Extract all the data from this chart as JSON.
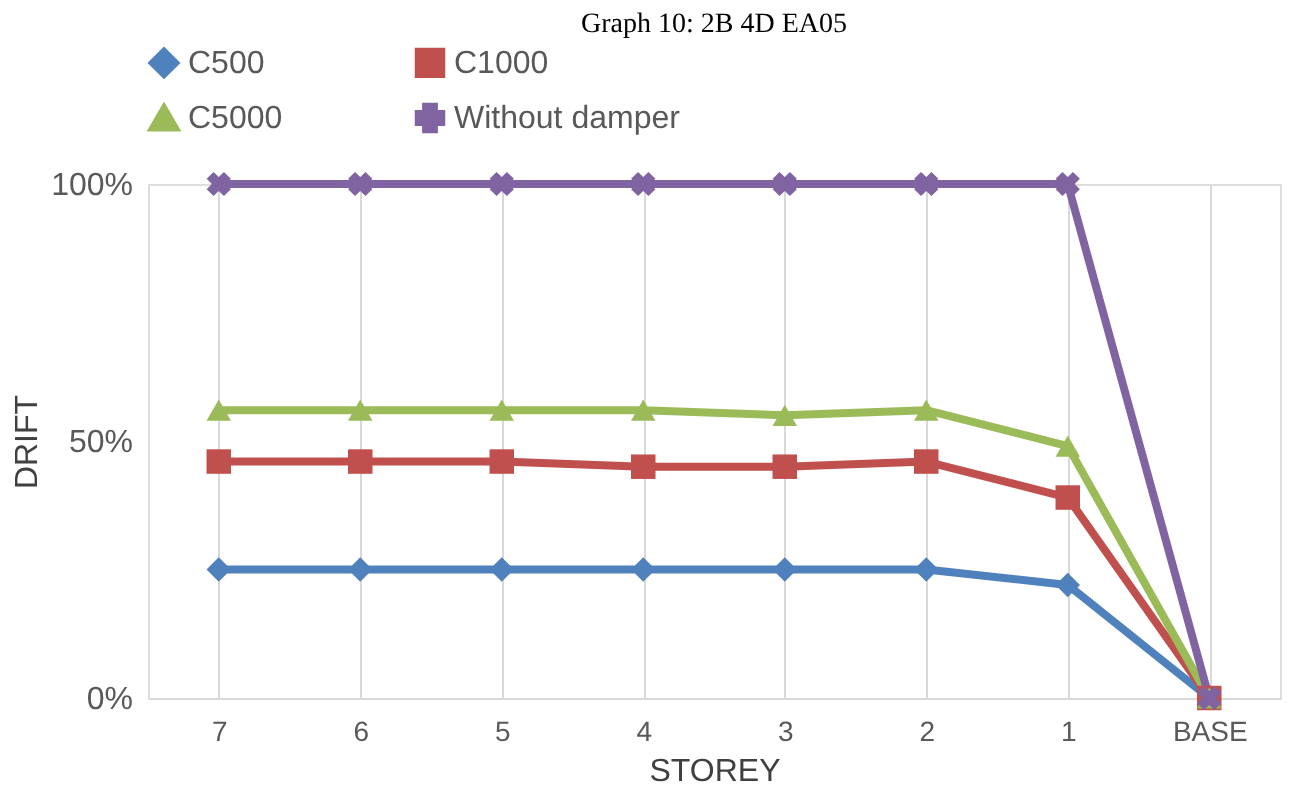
{
  "chart_data": {
    "type": "line",
    "title": "Graph 10: 2B 4D EA05",
    "xlabel": "STOREY",
    "ylabel": "DRIFT",
    "categories": [
      "7",
      "6",
      "5",
      "4",
      "3",
      "2",
      "1",
      "BASE"
    ],
    "series": [
      {
        "name": "C500",
        "color": "#4f81bd",
        "marker": "diamond",
        "values": [
          25,
          25,
          25,
          25,
          25,
          25,
          22,
          0
        ]
      },
      {
        "name": "C1000",
        "color": "#c0504d",
        "marker": "square",
        "values": [
          46,
          46,
          46,
          45,
          45,
          46,
          39,
          0
        ]
      },
      {
        "name": "C5000",
        "color": "#9bbb59",
        "marker": "triangle",
        "values": [
          56,
          56,
          56,
          56,
          55,
          56,
          49,
          0
        ]
      },
      {
        "name": "Without damper",
        "color": "#8064a2",
        "marker": "cross",
        "values": [
          100,
          100,
          100,
          100,
          100,
          100,
          100,
          0
        ]
      }
    ],
    "ylim": [
      0,
      100
    ],
    "yticks": [
      {
        "value": 0,
        "label": "0%"
      },
      {
        "value": 50,
        "label": "50%"
      },
      {
        "value": 100,
        "label": "100%"
      }
    ],
    "grid": "x",
    "legend": "top",
    "line_style": "solid"
  }
}
